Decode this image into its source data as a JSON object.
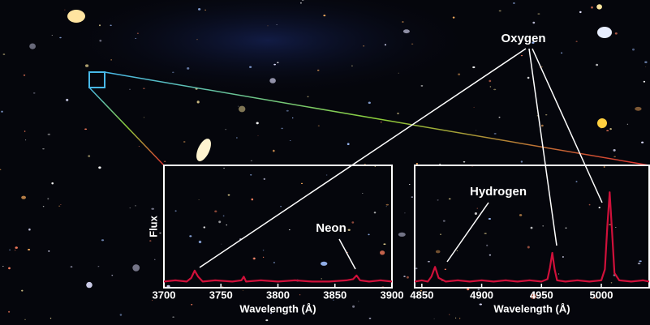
{
  "annotation": "Oxygen",
  "chart_data": [
    {
      "type": "line",
      "y_label": "Flux",
      "x_label": "Wavelength (Å)",
      "color": "#d0103a",
      "annotations": [
        "Neon"
      ],
      "xlim": [
        3700,
        3900
      ],
      "xticks": [
        3700,
        3750,
        3800,
        3850,
        3900
      ],
      "ylim": [
        0,
        10
      ],
      "x": [
        3700,
        3710,
        3720,
        3724,
        3727,
        3730,
        3734,
        3745,
        3760,
        3768,
        3770,
        3772,
        3785,
        3800,
        3815,
        3830,
        3845,
        3860,
        3866,
        3869,
        3872,
        3880,
        3890,
        3900
      ],
      "values": [
        0.5,
        0.6,
        0.5,
        0.8,
        1.4,
        0.9,
        0.5,
        0.6,
        0.5,
        0.6,
        0.9,
        0.5,
        0.6,
        0.5,
        0.6,
        0.5,
        0.5,
        0.6,
        0.7,
        1.0,
        0.6,
        0.5,
        0.6,
        0.5
      ]
    },
    {
      "type": "line",
      "x_label": "Wavelength (Å)",
      "color": "#d0103a",
      "annotations": [
        "Hydrogen"
      ],
      "xlim": [
        4844,
        5040
      ],
      "xticks": [
        4850,
        4900,
        4950,
        5000
      ],
      "ylim": [
        0,
        10
      ],
      "x": [
        4844,
        4850,
        4855,
        4858,
        4861,
        4864,
        4870,
        4880,
        4890,
        4900,
        4910,
        4920,
        4930,
        4940,
        4950,
        4955,
        4957,
        4959,
        4961,
        4963,
        4970,
        4980,
        4990,
        5000,
        5003,
        5005,
        5007,
        5009,
        5011,
        5015,
        5025,
        5035,
        5040
      ],
      "values": [
        0.5,
        0.6,
        0.5,
        0.9,
        1.7,
        0.8,
        0.5,
        0.6,
        0.5,
        0.6,
        0.5,
        0.6,
        0.5,
        0.6,
        0.5,
        0.7,
        1.6,
        2.85,
        1.5,
        0.6,
        0.5,
        0.6,
        0.5,
        0.6,
        1.5,
        5,
        7.8,
        4.5,
        1.2,
        0.6,
        0.5,
        0.6,
        0.5
      ]
    }
  ]
}
